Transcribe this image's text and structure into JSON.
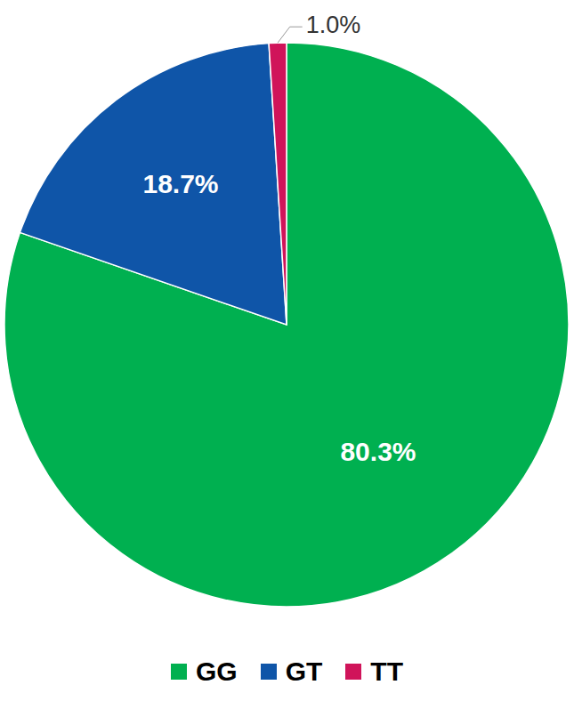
{
  "chart_data": {
    "type": "pie",
    "categories": [
      "GG",
      "GT",
      "TT"
    ],
    "values": [
      80.3,
      18.7,
      1.0
    ],
    "value_labels": [
      "80.3%",
      "18.7%",
      "1.0%"
    ],
    "colors": [
      "#00b050",
      "#0f55a8",
      "#d0145a"
    ],
    "data_labels": true,
    "legend": "bottom"
  }
}
